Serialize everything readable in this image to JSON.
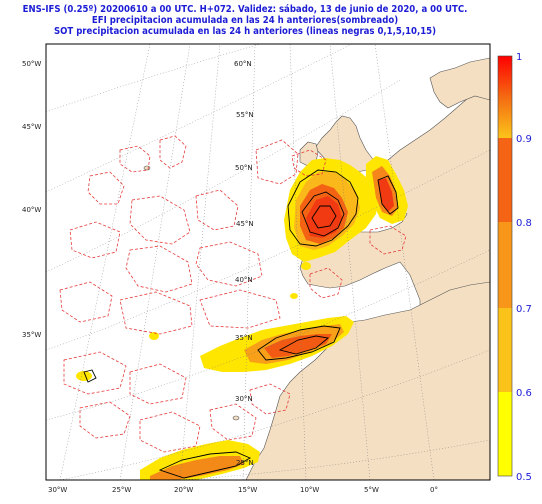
{
  "header": {
    "line1": "ENS-IFS (0.25º) 20200610 a 00 UTC.  H+072. Validez: sábado, 13 de junio de 2020,  a  00 UTC.",
    "line2": "EFI precipitacion acumulada en las 24 h anteriores(sombreado)",
    "line3": "SOT precipitacion acumulada en las 24 h anteriores (lineas negras 0,1,5,10,15)"
  },
  "map": {
    "lat_labels": [
      "60°N",
      "55°N",
      "50°N",
      "45°N",
      "40°N",
      "35°N",
      "30°N",
      "25°N"
    ],
    "lon_labels_left": [
      "50°W",
      "45°W",
      "40°W",
      "35°W"
    ],
    "lon_labels_bottom": [
      "30°W",
      "25°W",
      "20°W",
      "15°W",
      "10°W",
      "5°W",
      "0°"
    ],
    "colors": {
      "land": "#f4dfc2",
      "sea": "#ffffff",
      "coast": "#555555",
      "grid": "#777777",
      "efi_contour": "#e63a3a",
      "sot_contour": "#000000"
    }
  },
  "colorbar": {
    "ticks": [
      "1",
      "0.9",
      "0.8",
      "0.7",
      "0.6",
      "0.5"
    ],
    "colors": [
      "#f4170f",
      "#f14b12",
      "#f47a14",
      "#f7a318",
      "#fcd31c",
      "#ffff00"
    ]
  }
}
